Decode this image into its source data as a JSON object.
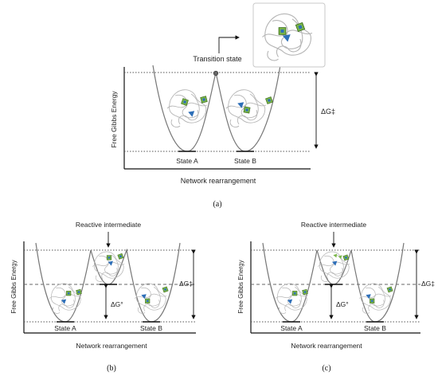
{
  "panel_a": {
    "ylabel": "Free Gibbs Energy",
    "xlabel": "Network rearrangement",
    "transition_label": "Transition state",
    "state_a": "State A",
    "state_b": "State B",
    "barrier_label": "ΔG‡",
    "caption": "(a)"
  },
  "panel_b": {
    "ylabel": "Free Gibbs Energy",
    "xlabel": "Network rearrangement",
    "intermediate_label": "Reactive intermediate",
    "state_a": "State A",
    "state_b": "State B",
    "barrier_label": "ΔG‡",
    "intermediate_energy_label": "ΔG°",
    "caption": "(b)"
  },
  "panel_c": {
    "ylabel": "Free Gibbs Energy",
    "xlabel": "Network rearrangement",
    "intermediate_label": "Reactive intermediate",
    "state_a": "State A",
    "state_b": "State B",
    "barrier_label": "ΔG‡",
    "intermediate_energy_label": "ΔG°",
    "caption": "(c)"
  },
  "colors": {
    "green_marker": "#7ab648",
    "blue_marker": "#2e6fb8",
    "axis": "#111111",
    "curve": "#777777"
  }
}
